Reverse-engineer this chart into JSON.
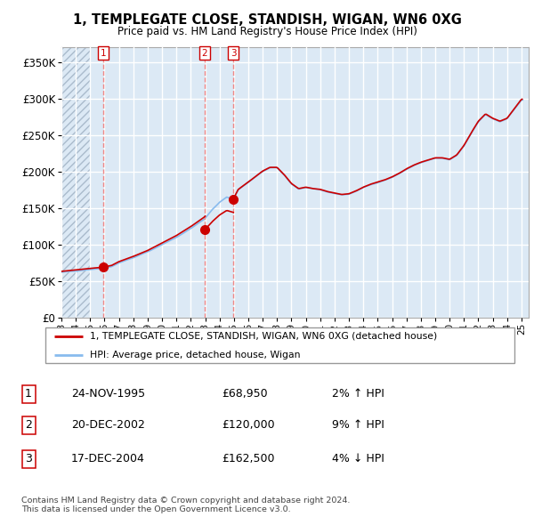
{
  "title": "1, TEMPLEGATE CLOSE, STANDISH, WIGAN, WN6 0XG",
  "subtitle": "Price paid vs. HM Land Registry's House Price Index (HPI)",
  "ylabel_ticks": [
    "£0",
    "£50K",
    "£100K",
    "£150K",
    "£200K",
    "£250K",
    "£300K",
    "£350K"
  ],
  "ytick_values": [
    0,
    50000,
    100000,
    150000,
    200000,
    250000,
    300000,
    350000
  ],
  "ylim": [
    0,
    370000
  ],
  "sale_date_floats": [
    1995.9,
    2002.96,
    2004.96
  ],
  "sale_prices": [
    68950,
    120000,
    162500
  ],
  "sale_labels": [
    "1",
    "2",
    "3"
  ],
  "legend_property": "1, TEMPLEGATE CLOSE, STANDISH, WIGAN, WN6 0XG (detached house)",
  "legend_hpi": "HPI: Average price, detached house, Wigan",
  "table_rows": [
    [
      "1",
      "24-NOV-1995",
      "£68,950",
      "2% ↑ HPI"
    ],
    [
      "2",
      "20-DEC-2002",
      "£120,000",
      "9% ↑ HPI"
    ],
    [
      "3",
      "17-DEC-2004",
      "£162,500",
      "4% ↓ HPI"
    ]
  ],
  "footnote": "Contains HM Land Registry data © Crown copyright and database right 2024.\nThis data is licensed under the Open Government Licence v3.0.",
  "property_line_color": "#cc0000",
  "hpi_line_color": "#88bbee",
  "sale_marker_color": "#cc0000",
  "dashed_line_color": "#ee8888",
  "xlim_start": 1993.0,
  "xlim_end": 2025.5,
  "chart_bg": "#dce9f5",
  "hatch_bg": "#c8d8e8"
}
